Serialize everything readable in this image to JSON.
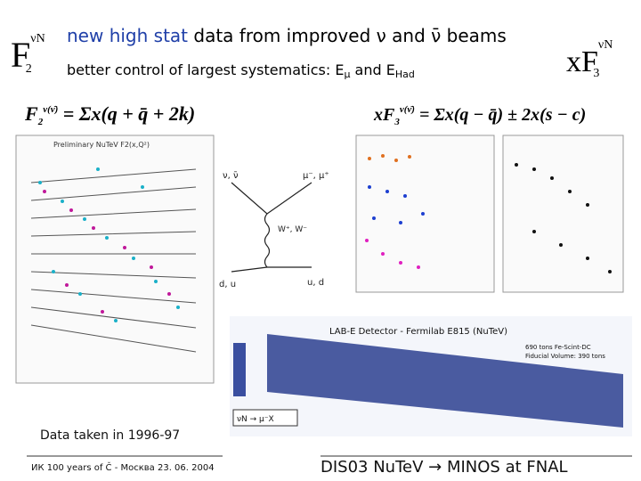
{
  "slide": {
    "left_label": {
      "base": "F",
      "sub": "2",
      "sup": "νN"
    },
    "right_label": {
      "base": "xF",
      "sub": "3",
      "sup": "νN"
    },
    "title": [
      "new high stat",
      " data from improved ν and ",
      "ν̄",
      " beams"
    ],
    "subtitle": [
      "better control of largest systematics: E",
      "μ",
      " and E",
      "Had"
    ],
    "formula_left": {
      "base": "F",
      "sub": "2",
      "sup": "ν(ν̄)",
      "rest": " = Σx(q + q̄ + 2k)"
    },
    "formula_right": {
      "base": "xF",
      "sub": "3",
      "sup": "ν(ν̄)",
      "rest": " = Σx(q − q̄) ± 2x(s − c)"
    },
    "plot_title": "Preliminary NuTeV F2(x,Q²)",
    "diagram": {
      "top_left": "ν, ν̄",
      "top_right": "μ⁻, μ⁺",
      "boson": "W⁺, W⁻",
      "bottom_left": "d, u",
      "bottom_right": "u, d"
    },
    "detector": {
      "title": "LAB-E Detector - Fermilab E815 (NuTeV)",
      "line1": "690 tons Fe-Scint-DC",
      "line2": "Fiducial Volume: 390 tons",
      "reaction": "νN → μ⁻X"
    },
    "note": "Data taken in 1996-97",
    "footer_left": "ИК 100 years of Č - Москва 23. 06. 2004",
    "footer_right": "DIS03 NuTeV → MINOS at FNAL"
  }
}
